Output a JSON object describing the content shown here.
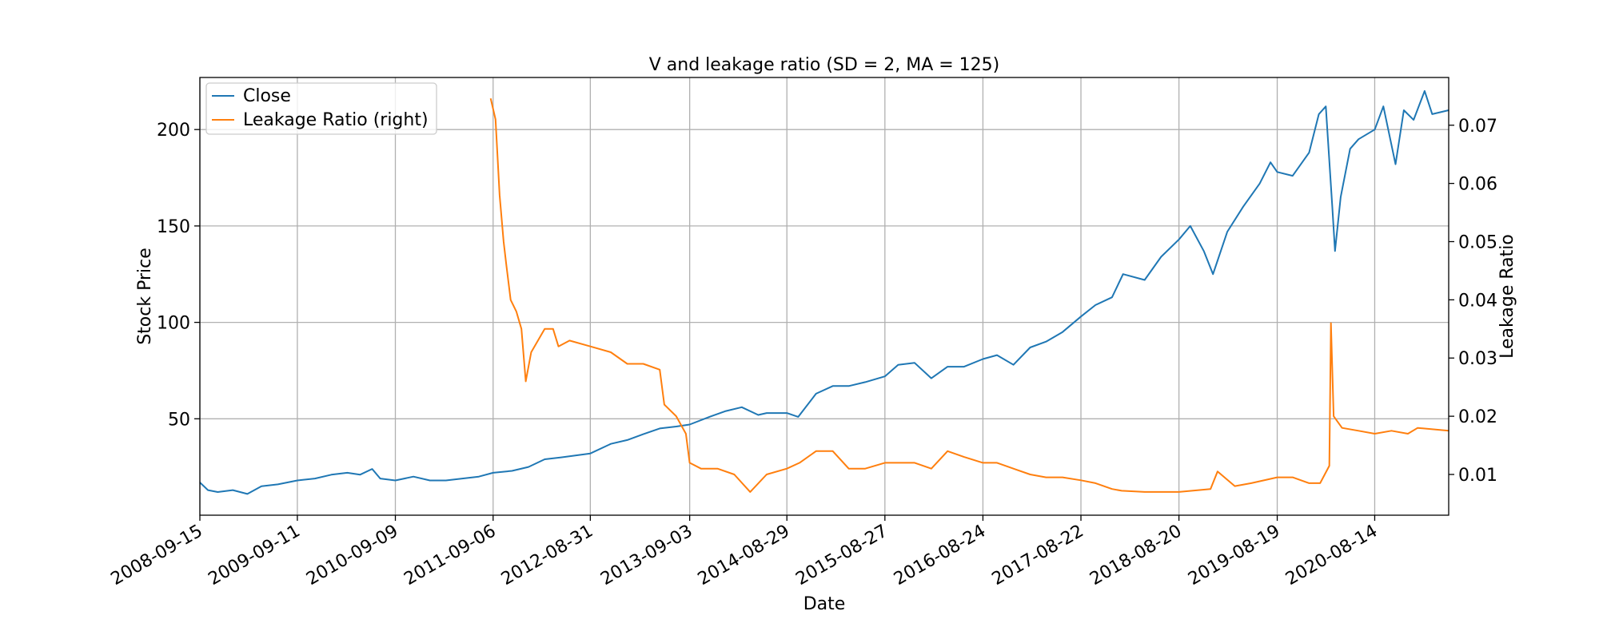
{
  "chart_data": {
    "type": "line",
    "title": "V and leakage ratio (SD = 2, MA = 125)",
    "xlabel": "Date",
    "ylabel": "Stock Price",
    "ylabel_right": "Leakage Ratio",
    "xlim": [
      "2008-09-15",
      "2021-05-15"
    ],
    "ylim": [
      0,
      227
    ],
    "ylim_right": [
      0.003,
      0.0782
    ],
    "x_ticks": [
      "2008-09-15",
      "2009-09-11",
      "2010-09-09",
      "2011-09-06",
      "2012-08-31",
      "2013-09-03",
      "2014-08-29",
      "2015-08-27",
      "2016-08-24",
      "2017-08-22",
      "2018-08-20",
      "2019-08-19",
      "2020-08-14"
    ],
    "y_ticks": [
      50,
      100,
      150,
      200
    ],
    "y_ticks_right": [
      0.01,
      0.02,
      0.03,
      0.04,
      0.05,
      0.06,
      0.07
    ],
    "grid": true,
    "legend": {
      "position": "top-left"
    },
    "colors": {
      "close": "#1f77b4",
      "leakage": "#ff7f0e"
    },
    "series": [
      {
        "name": "Close",
        "axis": "left",
        "color": "#1f77b4",
        "points": [
          [
            "2008-09-15",
            17
          ],
          [
            "2008-10-15",
            13
          ],
          [
            "2008-11-20",
            12
          ],
          [
            "2009-01-15",
            13
          ],
          [
            "2009-03-10",
            11
          ],
          [
            "2009-05-01",
            15
          ],
          [
            "2009-07-01",
            16
          ],
          [
            "2009-09-11",
            18
          ],
          [
            "2009-11-15",
            19
          ],
          [
            "2010-01-15",
            21
          ],
          [
            "2010-03-15",
            22
          ],
          [
            "2010-05-01",
            21
          ],
          [
            "2010-06-15",
            24
          ],
          [
            "2010-07-15",
            19
          ],
          [
            "2010-09-09",
            18
          ],
          [
            "2010-11-15",
            20
          ],
          [
            "2011-01-15",
            18
          ],
          [
            "2011-03-15",
            18
          ],
          [
            "2011-05-15",
            19
          ],
          [
            "2011-07-15",
            20
          ],
          [
            "2011-09-06",
            22
          ],
          [
            "2011-11-15",
            23
          ],
          [
            "2012-01-15",
            25
          ],
          [
            "2012-03-15",
            29
          ],
          [
            "2012-05-15",
            30
          ],
          [
            "2012-08-31",
            32
          ],
          [
            "2012-11-15",
            37
          ],
          [
            "2013-01-15",
            39
          ],
          [
            "2013-03-15",
            42
          ],
          [
            "2013-05-15",
            45
          ],
          [
            "2013-07-15",
            46
          ],
          [
            "2013-09-03",
            47
          ],
          [
            "2013-11-15",
            51
          ],
          [
            "2014-01-15",
            54
          ],
          [
            "2014-03-15",
            56
          ],
          [
            "2014-05-15",
            52
          ],
          [
            "2014-06-15",
            53
          ],
          [
            "2014-08-29",
            53
          ],
          [
            "2014-10-10",
            51
          ],
          [
            "2014-12-15",
            63
          ],
          [
            "2015-02-15",
            67
          ],
          [
            "2015-04-15",
            67
          ],
          [
            "2015-06-15",
            69
          ],
          [
            "2015-08-27",
            72
          ],
          [
            "2015-10-15",
            78
          ],
          [
            "2015-12-15",
            79
          ],
          [
            "2016-02-15",
            71
          ],
          [
            "2016-04-15",
            77
          ],
          [
            "2016-06-15",
            77
          ],
          [
            "2016-08-24",
            81
          ],
          [
            "2016-10-15",
            83
          ],
          [
            "2016-12-15",
            78
          ],
          [
            "2017-02-15",
            87
          ],
          [
            "2017-04-15",
            90
          ],
          [
            "2017-06-15",
            95
          ],
          [
            "2017-08-22",
            103
          ],
          [
            "2017-10-15",
            109
          ],
          [
            "2017-12-15",
            113
          ],
          [
            "2018-01-25",
            125
          ],
          [
            "2018-04-15",
            122
          ],
          [
            "2018-06-15",
            134
          ],
          [
            "2018-08-20",
            143
          ],
          [
            "2018-10-01",
            150
          ],
          [
            "2018-11-20",
            137
          ],
          [
            "2018-12-24",
            125
          ],
          [
            "2019-02-15",
            147
          ],
          [
            "2019-04-15",
            160
          ],
          [
            "2019-06-15",
            172
          ],
          [
            "2019-07-25",
            183
          ],
          [
            "2019-08-19",
            178
          ],
          [
            "2019-10-15",
            176
          ],
          [
            "2019-12-15",
            188
          ],
          [
            "2020-01-20",
            208
          ],
          [
            "2020-02-15",
            212
          ],
          [
            "2020-03-10",
            160
          ],
          [
            "2020-03-20",
            137
          ],
          [
            "2020-04-10",
            165
          ],
          [
            "2020-05-15",
            190
          ],
          [
            "2020-06-15",
            195
          ],
          [
            "2020-08-14",
            200
          ],
          [
            "2020-09-15",
            212
          ],
          [
            "2020-10-30",
            182
          ],
          [
            "2020-11-30",
            210
          ],
          [
            "2021-01-05",
            205
          ],
          [
            "2021-02-15",
            220
          ],
          [
            "2021-03-15",
            208
          ],
          [
            "2021-05-15",
            210
          ]
        ]
      },
      {
        "name": "Leakage Ratio (right)",
        "axis": "right",
        "color": "#ff7f0e",
        "points": [
          [
            "2011-08-28",
            0.0746
          ],
          [
            "2011-09-15",
            0.071
          ],
          [
            "2011-09-30",
            0.058
          ],
          [
            "2011-10-15",
            0.05
          ],
          [
            "2011-10-25",
            0.046
          ],
          [
            "2011-11-10",
            0.04
          ],
          [
            "2011-12-01",
            0.038
          ],
          [
            "2011-12-20",
            0.035
          ],
          [
            "2012-01-05",
            0.026
          ],
          [
            "2012-01-25",
            0.031
          ],
          [
            "2012-03-15",
            0.035
          ],
          [
            "2012-04-15",
            0.035
          ],
          [
            "2012-05-05",
            0.032
          ],
          [
            "2012-06-15",
            0.033
          ],
          [
            "2012-08-31",
            0.032
          ],
          [
            "2012-11-15",
            0.031
          ],
          [
            "2013-01-15",
            0.029
          ],
          [
            "2013-03-15",
            0.029
          ],
          [
            "2013-05-15",
            0.028
          ],
          [
            "2013-06-01",
            0.022
          ],
          [
            "2013-07-15",
            0.02
          ],
          [
            "2013-08-20",
            0.017
          ],
          [
            "2013-09-03",
            0.012
          ],
          [
            "2013-10-15",
            0.011
          ],
          [
            "2013-12-15",
            0.011
          ],
          [
            "2014-02-15",
            0.01
          ],
          [
            "2014-04-15",
            0.007
          ],
          [
            "2014-06-15",
            0.01
          ],
          [
            "2014-08-29",
            0.011
          ],
          [
            "2014-10-15",
            0.012
          ],
          [
            "2014-12-15",
            0.014
          ],
          [
            "2015-02-15",
            0.014
          ],
          [
            "2015-04-15",
            0.011
          ],
          [
            "2015-06-15",
            0.011
          ],
          [
            "2015-08-27",
            0.012
          ],
          [
            "2015-10-15",
            0.012
          ],
          [
            "2015-12-15",
            0.012
          ],
          [
            "2016-02-15",
            0.011
          ],
          [
            "2016-04-15",
            0.014
          ],
          [
            "2016-06-15",
            0.013
          ],
          [
            "2016-08-24",
            0.012
          ],
          [
            "2016-10-15",
            0.012
          ],
          [
            "2016-12-15",
            0.011
          ],
          [
            "2017-02-15",
            0.01
          ],
          [
            "2017-04-15",
            0.0095
          ],
          [
            "2017-06-15",
            0.0095
          ],
          [
            "2017-08-22",
            0.009
          ],
          [
            "2017-10-15",
            0.0085
          ],
          [
            "2017-12-15",
            0.0075
          ],
          [
            "2018-01-20",
            0.0072
          ],
          [
            "2018-04-15",
            0.007
          ],
          [
            "2018-08-20",
            0.007
          ],
          [
            "2018-12-15",
            0.0075
          ],
          [
            "2019-01-10",
            0.0105
          ],
          [
            "2019-03-15",
            0.008
          ],
          [
            "2019-05-15",
            0.0085
          ],
          [
            "2019-08-19",
            0.0095
          ],
          [
            "2019-10-15",
            0.0095
          ],
          [
            "2019-12-15",
            0.0085
          ],
          [
            "2020-01-25",
            0.0085
          ],
          [
            "2020-02-28",
            0.0115
          ],
          [
            "2020-03-05",
            0.036
          ],
          [
            "2020-03-15",
            0.02
          ],
          [
            "2020-04-15",
            0.018
          ],
          [
            "2020-06-15",
            0.0175
          ],
          [
            "2020-08-14",
            0.017
          ],
          [
            "2020-10-15",
            0.0175
          ],
          [
            "2020-12-15",
            0.017
          ],
          [
            "2021-01-20",
            0.018
          ],
          [
            "2021-05-15",
            0.0175
          ]
        ]
      }
    ]
  }
}
